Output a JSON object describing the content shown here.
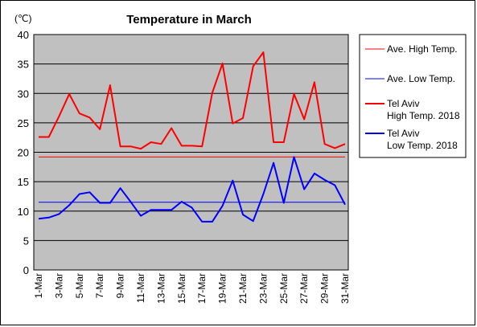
{
  "chart_data": {
    "type": "line",
    "title": "Temperature in March",
    "unit_label": "(℃)",
    "ylim": [
      0,
      40
    ],
    "y_ticks": [
      "0",
      "5",
      "10",
      "15",
      "20",
      "25",
      "30",
      "35",
      "40"
    ],
    "x_tick_labels": [
      "1-Mar",
      "3-Mar",
      "5-Mar",
      "7-Mar",
      "9-Mar",
      "11-Mar",
      "13-Mar",
      "15-Mar",
      "17-Mar",
      "19-Mar",
      "21-Mar",
      "23-Mar",
      "25-Mar",
      "27-Mar",
      "29-Mar",
      "31-Mar"
    ],
    "x": [
      1,
      2,
      3,
      4,
      5,
      6,
      7,
      8,
      9,
      10,
      11,
      12,
      13,
      14,
      15,
      16,
      17,
      18,
      19,
      20,
      21,
      22,
      23,
      24,
      25,
      26,
      27,
      28,
      29,
      30,
      31
    ],
    "grid": true,
    "legend_position": "right",
    "plot_background": "#c0c0c0",
    "series": [
      {
        "name": "Ave. High Temp.",
        "color": "#ff0000",
        "style": "thin",
        "values": [
          19.2,
          19.2,
          19.2,
          19.2,
          19.2,
          19.2,
          19.2,
          19.2,
          19.2,
          19.2,
          19.2,
          19.2,
          19.2,
          19.2,
          19.2,
          19.2,
          19.2,
          19.2,
          19.2,
          19.2,
          19.2,
          19.2,
          19.2,
          19.2,
          19.2,
          19.2,
          19.2,
          19.2,
          19.2,
          19.2,
          19.2
        ]
      },
      {
        "name": "Ave. Low Temp.",
        "color": "#0000ff",
        "style": "thin",
        "values": [
          11.5,
          11.5,
          11.5,
          11.5,
          11.5,
          11.5,
          11.5,
          11.5,
          11.5,
          11.5,
          11.5,
          11.5,
          11.5,
          11.5,
          11.5,
          11.5,
          11.5,
          11.5,
          11.5,
          11.5,
          11.5,
          11.5,
          11.5,
          11.5,
          11.5,
          11.5,
          11.5,
          11.5,
          11.5,
          11.5,
          11.5
        ]
      },
      {
        "name": "Tel Aviv\nHigh Temp. 2018",
        "color": "#ff0000",
        "style": "thick",
        "values": [
          22.6,
          22.6,
          26.1,
          29.9,
          26.6,
          25.9,
          23.9,
          31.4,
          21.0,
          21.0,
          20.6,
          21.7,
          21.4,
          24.1,
          21.1,
          21.1,
          21.0,
          30.1,
          35.1,
          24.9,
          25.8,
          34.6,
          37.0,
          21.7,
          21.7,
          29.9,
          25.6,
          31.9,
          21.4,
          20.7,
          21.4
        ]
      },
      {
        "name": "Tel Aviv\nLow Temp. 2018",
        "color": "#0000ff",
        "style": "thick",
        "values": [
          8.7,
          8.9,
          9.5,
          11.0,
          12.9,
          13.2,
          11.4,
          11.4,
          13.9,
          11.6,
          9.2,
          10.2,
          10.2,
          10.2,
          11.6,
          10.6,
          8.2,
          8.2,
          10.9,
          15.2,
          9.4,
          8.3,
          12.9,
          18.2,
          11.4,
          19.2,
          13.7,
          16.4,
          15.3,
          14.4,
          11.1
        ]
      }
    ]
  }
}
